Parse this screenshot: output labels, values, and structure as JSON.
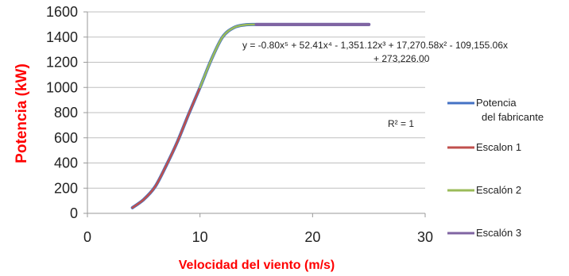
{
  "chart_data": {
    "type": "line",
    "xlabel": "Velocidad del viento (m/s)",
    "ylabel": "Potencia (kW)",
    "xlim": [
      0,
      30
    ],
    "ylim": [
      0,
      1600
    ],
    "xticks": [
      0,
      10,
      20,
      30
    ],
    "yticks": [
      0,
      200,
      400,
      600,
      800,
      1000,
      1200,
      1400,
      1600
    ],
    "grid": "horizontal",
    "legend_position": "right",
    "series": [
      {
        "name": "Potencia del fabricante",
        "color": "#4472c4",
        "x": [
          4,
          5,
          6,
          7,
          8,
          9,
          10,
          11,
          12,
          13,
          14,
          15,
          16,
          17,
          18,
          19,
          20,
          21,
          22,
          23,
          24,
          25
        ],
        "y": [
          45,
          110,
          210,
          380,
          570,
          790,
          1000,
          1220,
          1400,
          1475,
          1497,
          1500,
          1500,
          1500,
          1500,
          1500,
          1500,
          1500,
          1500,
          1500,
          1500,
          1500
        ]
      },
      {
        "name": "Escalon 1",
        "color": "#c0504d",
        "x": [
          4,
          5,
          6,
          7,
          8,
          9,
          10
        ],
        "y": [
          45,
          110,
          210,
          380,
          570,
          790,
          1000
        ]
      },
      {
        "name": "Escalón 2",
        "color": "#9bbb59",
        "x": [
          10,
          11,
          12,
          13,
          14,
          15
        ],
        "y": [
          1000,
          1220,
          1400,
          1475,
          1497,
          1500
        ]
      },
      {
        "name": "Escalón 3",
        "color": "#8064a2",
        "x": [
          15,
          16,
          17,
          18,
          19,
          20,
          21,
          22,
          23,
          24,
          25
        ],
        "y": [
          1500,
          1500,
          1500,
          1500,
          1500,
          1500,
          1500,
          1500,
          1500,
          1500,
          1500
        ]
      }
    ],
    "annotations": {
      "equation_line1": "y = -0.80x⁵ + 52.41x⁴ - 1,351.12x³ + 17,270.58x² - 109,155.06x",
      "equation_line2": "+ 273,226.00",
      "r_squared": "R² = 1"
    },
    "legend": [
      {
        "line1": "Potencia",
        "line2": "del fabricante"
      },
      {
        "line1": "Escalon 1",
        "line2": ""
      },
      {
        "line1": "Escalón 2",
        "line2": ""
      },
      {
        "line1": "Escalón 3",
        "line2": ""
      }
    ]
  }
}
